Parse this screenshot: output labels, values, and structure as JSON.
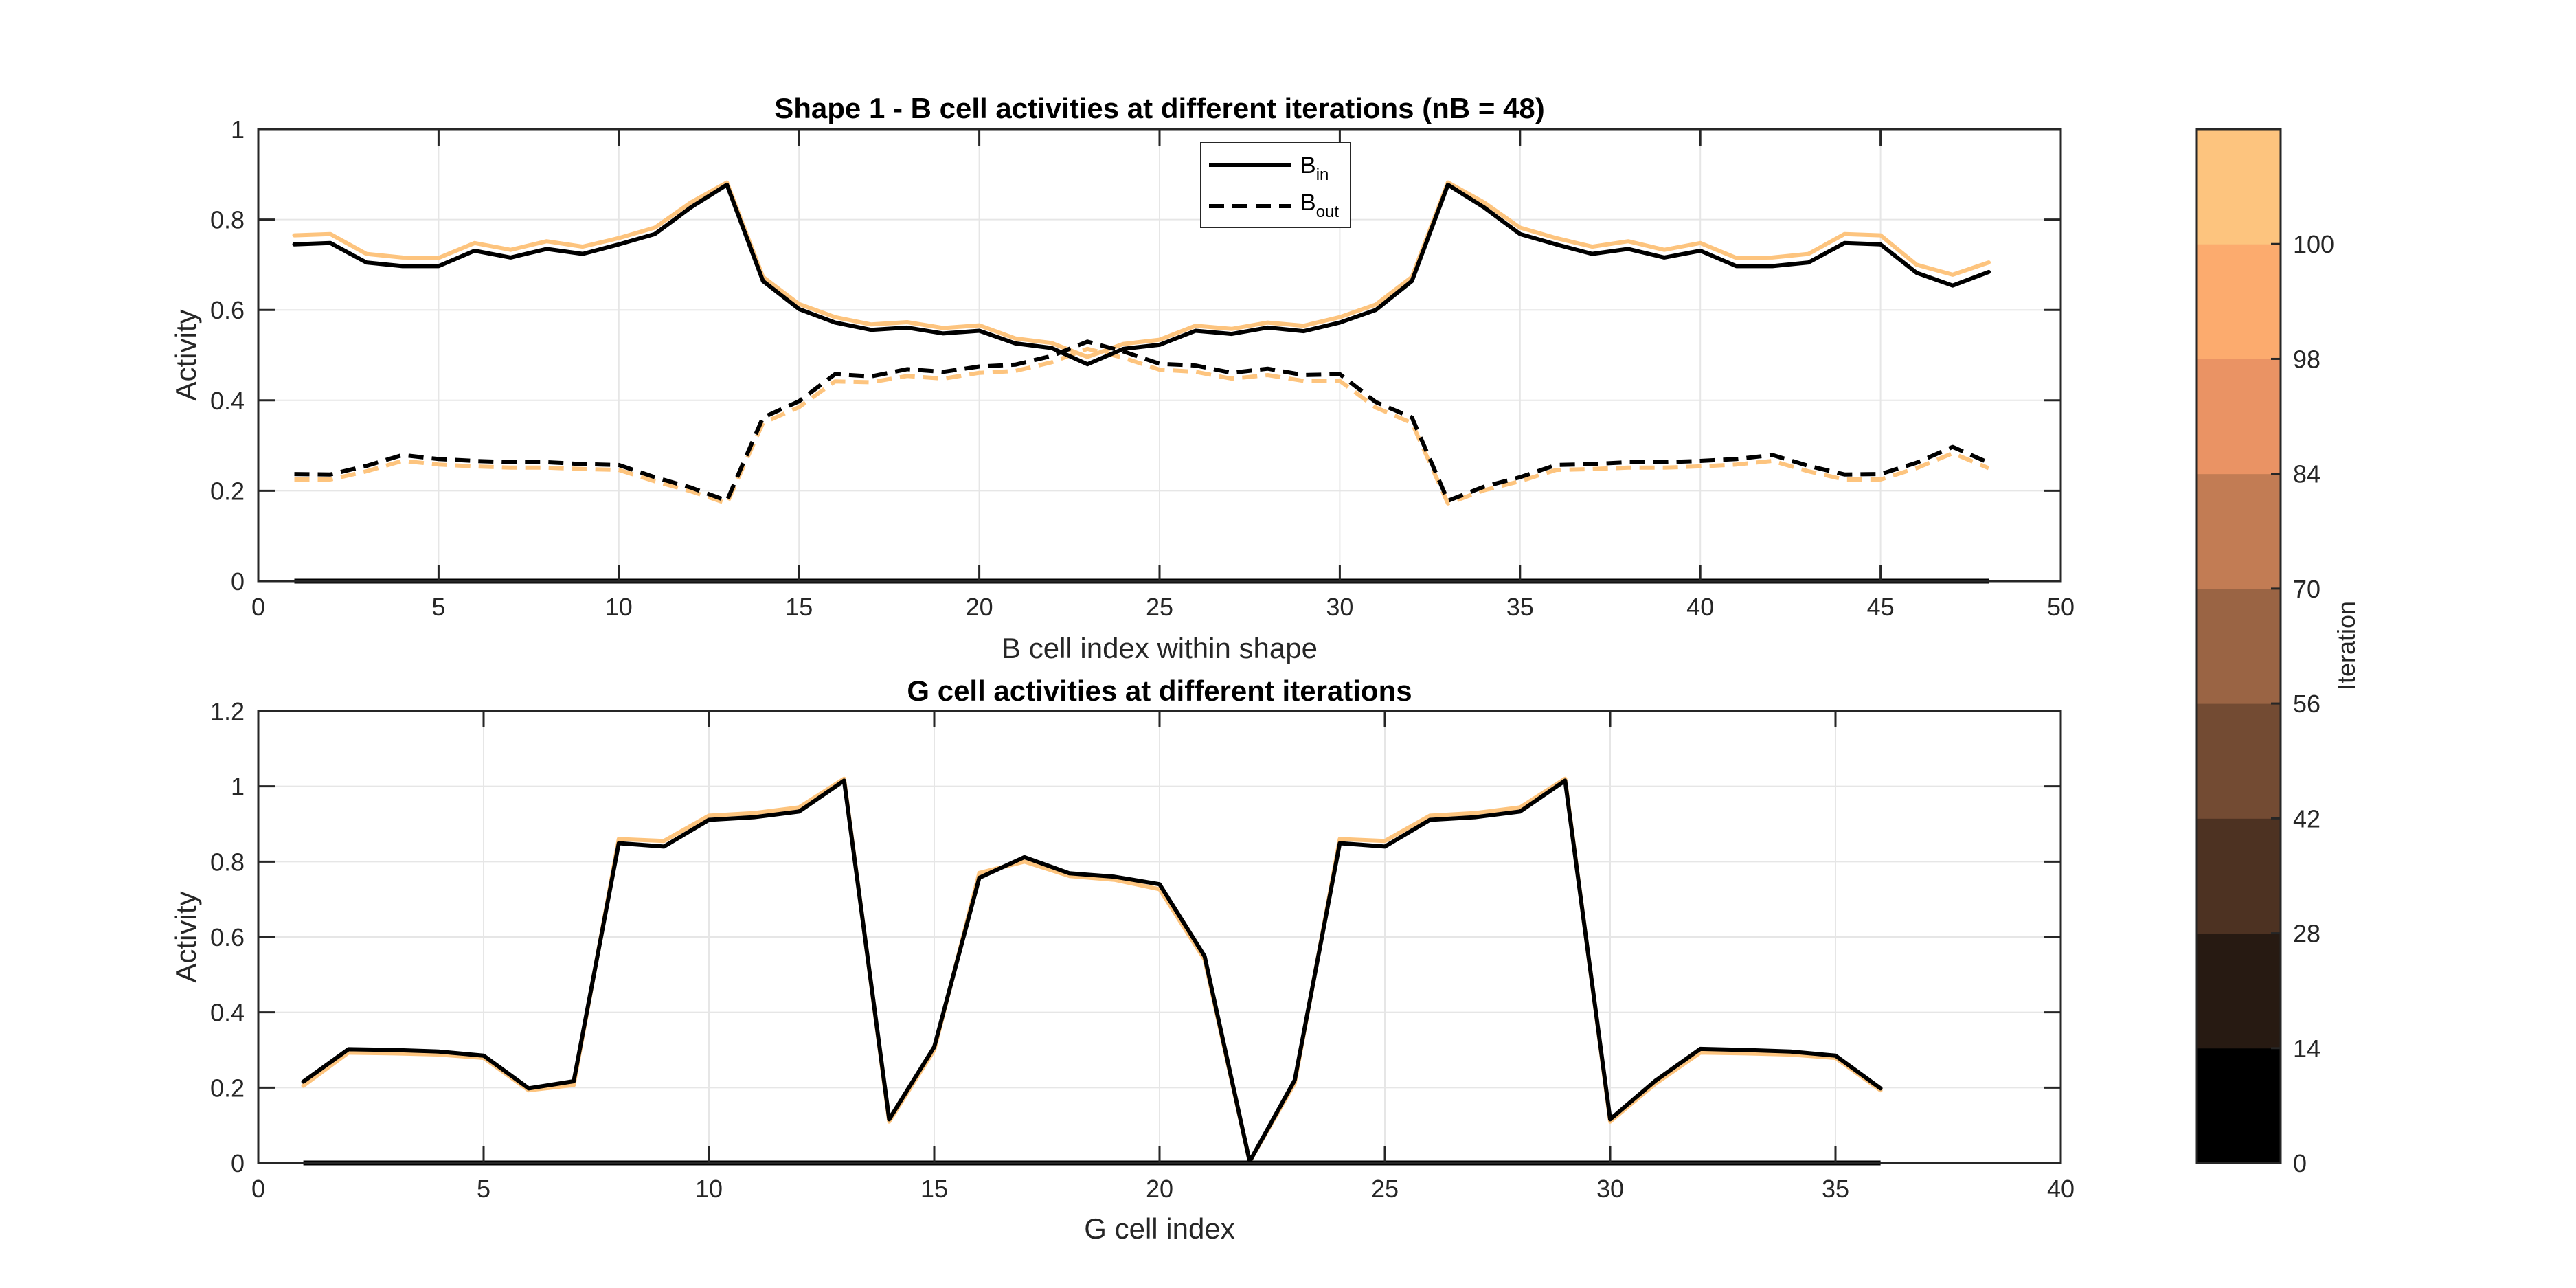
{
  "chart_data": [
    {
      "type": "line",
      "title": "Shape 1 - B cell activities at different iterations (nB = 48)",
      "xlabel": "B cell index within shape",
      "ylabel": "Activity",
      "xlim": [
        0,
        50
      ],
      "ylim": [
        0,
        1
      ],
      "xticks": [
        0,
        5,
        10,
        15,
        20,
        25,
        30,
        35,
        40,
        45,
        50
      ],
      "yticks": [
        0,
        0.2,
        0.4,
        0.6,
        0.8,
        1
      ],
      "grid": true,
      "legend": {
        "position": "top-center",
        "entries": [
          {
            "base": "B",
            "sub": "in",
            "style": "solid"
          },
          {
            "base": "B",
            "sub": "out",
            "style": "dashed"
          }
        ]
      },
      "x": [
        1,
        2,
        3,
        4,
        5,
        6,
        7,
        8,
        9,
        10,
        11,
        12,
        13,
        14,
        15,
        16,
        17,
        18,
        19,
        20,
        21,
        22,
        23,
        24,
        25,
        26,
        27,
        28,
        29,
        30,
        31,
        32,
        33,
        34,
        35,
        36,
        37,
        38,
        39,
        40,
        41,
        42,
        43,
        44,
        45,
        46,
        47,
        48
      ],
      "series": [
        {
          "iteration": 0,
          "kind": "in",
          "style": "solid",
          "color": "#000000",
          "values": [
            0.745,
            0.748,
            0.705,
            0.697,
            0.697,
            0.731,
            0.716,
            0.735,
            0.724,
            0.745,
            0.768,
            0.827,
            0.877,
            0.664,
            0.602,
            0.572,
            0.556,
            0.561,
            0.548,
            0.554,
            0.526,
            0.516,
            0.48,
            0.514,
            0.523,
            0.554,
            0.547,
            0.561,
            0.553,
            0.572,
            0.6,
            0.664,
            0.877,
            0.827,
            0.768,
            0.745,
            0.724,
            0.735,
            0.716,
            0.731,
            0.697,
            0.697,
            0.705,
            0.748,
            0.745,
            0.682,
            0.654,
            0.684
          ]
        },
        {
          "iteration": 0,
          "kind": "out",
          "style": "dashed",
          "color": "#000000",
          "values": [
            0.237,
            0.236,
            0.255,
            0.279,
            0.27,
            0.266,
            0.263,
            0.263,
            0.259,
            0.257,
            0.23,
            0.207,
            0.178,
            0.362,
            0.398,
            0.458,
            0.453,
            0.469,
            0.463,
            0.475,
            0.479,
            0.498,
            0.53,
            0.508,
            0.481,
            0.477,
            0.461,
            0.47,
            0.456,
            0.458,
            0.396,
            0.362,
            0.178,
            0.209,
            0.23,
            0.257,
            0.259,
            0.263,
            0.263,
            0.266,
            0.27,
            0.279,
            0.255,
            0.236,
            0.237,
            0.262,
            0.297,
            0.262
          ]
        },
        {
          "iteration": 100,
          "kind": "in",
          "style": "solid",
          "color": "#FDC47E",
          "values": [
            0.765,
            0.768,
            0.724,
            0.716,
            0.715,
            0.748,
            0.733,
            0.752,
            0.74,
            0.759,
            0.782,
            0.838,
            0.882,
            0.673,
            0.613,
            0.584,
            0.568,
            0.573,
            0.56,
            0.566,
            0.537,
            0.527,
            0.496,
            0.525,
            0.534,
            0.565,
            0.558,
            0.572,
            0.565,
            0.584,
            0.612,
            0.673,
            0.882,
            0.838,
            0.782,
            0.759,
            0.74,
            0.752,
            0.733,
            0.748,
            0.715,
            0.716,
            0.724,
            0.768,
            0.765,
            0.7,
            0.678,
            0.705
          ]
        },
        {
          "iteration": 100,
          "kind": "out",
          "style": "dashed",
          "color": "#FDC47E",
          "values": [
            0.225,
            0.225,
            0.243,
            0.266,
            0.258,
            0.254,
            0.251,
            0.251,
            0.248,
            0.246,
            0.221,
            0.199,
            0.172,
            0.35,
            0.385,
            0.442,
            0.44,
            0.454,
            0.448,
            0.461,
            0.465,
            0.484,
            0.514,
            0.494,
            0.468,
            0.463,
            0.448,
            0.456,
            0.443,
            0.443,
            0.384,
            0.35,
            0.172,
            0.201,
            0.221,
            0.246,
            0.248,
            0.251,
            0.251,
            0.254,
            0.258,
            0.266,
            0.243,
            0.225,
            0.225,
            0.25,
            0.283,
            0.25
          ]
        }
      ],
      "zero_line": {
        "x": [
          1,
          48
        ],
        "y": 0
      }
    },
    {
      "type": "line",
      "title": "G cell activities at different iterations",
      "xlabel": "G cell index",
      "ylabel": "Activity",
      "xlim": [
        0,
        40
      ],
      "ylim": [
        0,
        1.2
      ],
      "xticks": [
        0,
        5,
        10,
        15,
        20,
        25,
        30,
        35,
        40
      ],
      "yticks": [
        0,
        0.2,
        0.4,
        0.6,
        0.8,
        1,
        1.2
      ],
      "grid": true,
      "x": [
        1,
        2,
        3,
        4,
        5,
        6,
        7,
        8,
        9,
        10,
        11,
        12,
        13,
        14,
        15,
        16,
        17,
        18,
        19,
        20,
        21,
        22,
        23,
        24,
        25,
        26,
        27,
        28,
        29,
        30,
        31,
        32,
        33,
        34,
        35,
        36
      ],
      "series": [
        {
          "iteration": 0,
          "color": "#000000",
          "values": [
            0.216,
            0.302,
            0.3,
            0.296,
            0.285,
            0.198,
            0.217,
            0.849,
            0.84,
            0.911,
            0.918,
            0.933,
            1.015,
            0.116,
            0.308,
            0.757,
            0.812,
            0.769,
            0.76,
            0.74,
            0.549,
            0.004,
            0.22,
            0.849,
            0.84,
            0.911,
            0.918,
            0.933,
            1.015,
            0.116,
            0.218,
            0.303,
            0.3,
            0.296,
            0.285,
            0.198
          ]
        },
        {
          "iteration": 100,
          "color": "#FDC47E",
          "values": [
            0.205,
            0.293,
            0.291,
            0.288,
            0.279,
            0.193,
            0.207,
            0.86,
            0.855,
            0.922,
            0.929,
            0.944,
            1.02,
            0.11,
            0.3,
            0.77,
            0.8,
            0.762,
            0.752,
            0.727,
            0.54,
            0.004,
            0.212,
            0.86,
            0.855,
            0.922,
            0.929,
            0.944,
            1.02,
            0.11,
            0.21,
            0.293,
            0.291,
            0.288,
            0.279,
            0.193
          ]
        }
      ],
      "zero_line": {
        "x": [
          1,
          36
        ],
        "y": 0
      }
    }
  ],
  "colorbar": {
    "label": "Iteration",
    "tick_labels": [
      "0",
      "14",
      "28",
      "42",
      "56",
      "70",
      "84",
      "98",
      "100"
    ],
    "colors": [
      "#000000",
      "#271A12",
      "#4D3222",
      "#734B33",
      "#9A6444",
      "#C27C54",
      "#EA9364",
      "#FCAB6E",
      "#FDC47E"
    ]
  }
}
